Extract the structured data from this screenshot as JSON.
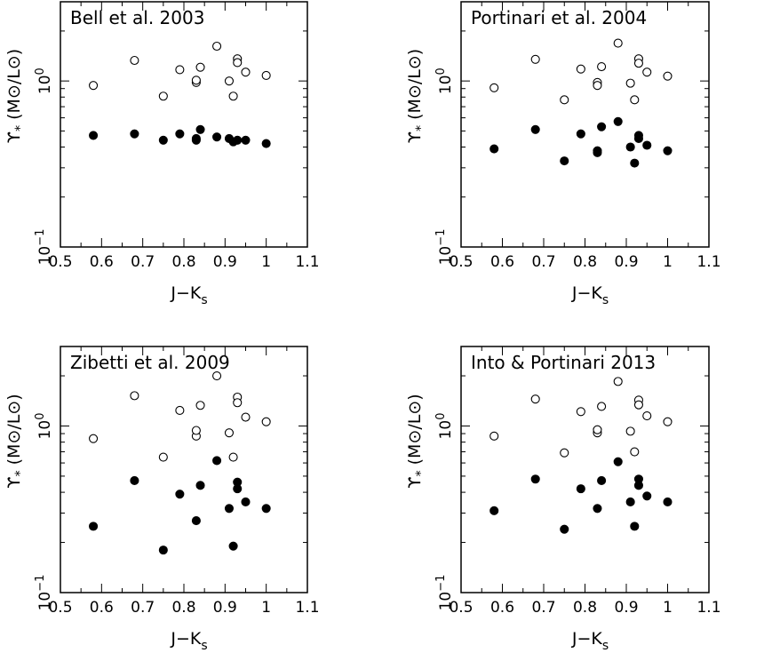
{
  "chart_data": [
    {
      "type": "scatter",
      "title": "Bell et al. 2003",
      "xlabel": "J−K",
      "xlabel_sub": "s",
      "ylabel_sym": "ϒ",
      "ylabel_sub": "*",
      "ylabel_units": "(M⊙/L⊙)",
      "xlim": [
        0.5,
        1.1
      ],
      "ylim": [
        0.1,
        3.0
      ],
      "yscale": "log",
      "x_ticks": [
        "0.5",
        "0.6",
        "0.7",
        "0.8",
        "0.9",
        "1",
        "1.1"
      ],
      "y_ticks": [
        {
          "base": "10",
          "exp": "0"
        },
        {
          "base": "10",
          "exp": "−1"
        }
      ],
      "grid": false,
      "series": [
        {
          "name": "open",
          "marker": "open-circle",
          "x": [
            0.58,
            0.68,
            0.75,
            0.79,
            0.83,
            0.83,
            0.84,
            0.88,
            0.91,
            0.92,
            0.93,
            0.93,
            0.95,
            1.0
          ],
          "y": [
            0.94,
            1.33,
            0.81,
            1.17,
            0.98,
            1.01,
            1.21,
            1.62,
            1.0,
            0.81,
            1.36,
            1.29,
            1.13,
            1.08
          ]
        },
        {
          "name": "filled",
          "marker": "filled-circle",
          "x": [
            0.58,
            0.68,
            0.75,
            0.79,
            0.83,
            0.83,
            0.84,
            0.88,
            0.91,
            0.92,
            0.93,
            0.95,
            1.0
          ],
          "y": [
            0.47,
            0.48,
            0.44,
            0.48,
            0.45,
            0.44,
            0.51,
            0.46,
            0.45,
            0.43,
            0.44,
            0.44,
            0.42
          ]
        }
      ]
    },
    {
      "type": "scatter",
      "title": "Portinari et al. 2004",
      "xlabel": "J−K",
      "xlabel_sub": "s",
      "ylabel_sym": "ϒ",
      "ylabel_sub": "*",
      "ylabel_units": "(M⊙/L⊙)",
      "xlim": [
        0.5,
        1.1
      ],
      "ylim": [
        0.1,
        3.0
      ],
      "yscale": "log",
      "x_ticks": [
        "0.5",
        "0.6",
        "0.7",
        "0.8",
        "0.9",
        "1",
        "1.1"
      ],
      "y_ticks": [
        {
          "base": "10",
          "exp": "0"
        },
        {
          "base": "10",
          "exp": "−1"
        }
      ],
      "grid": false,
      "series": [
        {
          "name": "open",
          "marker": "open-circle",
          "x": [
            0.58,
            0.68,
            0.75,
            0.79,
            0.83,
            0.83,
            0.84,
            0.88,
            0.91,
            0.92,
            0.93,
            0.93,
            0.95,
            1.0
          ],
          "y": [
            0.91,
            1.35,
            0.77,
            1.18,
            0.98,
            0.94,
            1.22,
            1.69,
            0.97,
            0.77,
            1.36,
            1.28,
            1.13,
            1.07
          ]
        },
        {
          "name": "filled",
          "marker": "filled-circle",
          "x": [
            0.58,
            0.68,
            0.75,
            0.79,
            0.83,
            0.83,
            0.84,
            0.88,
            0.91,
            0.92,
            0.93,
            0.93,
            0.95,
            1.0
          ],
          "y": [
            0.39,
            0.51,
            0.33,
            0.48,
            0.38,
            0.37,
            0.53,
            0.57,
            0.4,
            0.32,
            0.47,
            0.45,
            0.41,
            0.38
          ]
        }
      ]
    },
    {
      "type": "scatter",
      "title": "Zibetti et al. 2009",
      "xlabel": "J−K",
      "xlabel_sub": "s",
      "ylabel_sym": "ϒ",
      "ylabel_sub": "*",
      "ylabel_units": "(M⊙/L⊙)",
      "xlim": [
        0.5,
        1.1
      ],
      "ylim": [
        0.1,
        3.0
      ],
      "yscale": "log",
      "x_ticks": [
        "0.5",
        "0.6",
        "0.7",
        "0.8",
        "0.9",
        "1",
        "1.1"
      ],
      "y_ticks": [
        {
          "base": "10",
          "exp": "0"
        },
        {
          "base": "10",
          "exp": "−1"
        }
      ],
      "grid": false,
      "series": [
        {
          "name": "open",
          "marker": "open-circle",
          "x": [
            0.58,
            0.68,
            0.75,
            0.79,
            0.83,
            0.83,
            0.84,
            0.88,
            0.91,
            0.92,
            0.93,
            0.93,
            0.95,
            1.0
          ],
          "y": [
            0.84,
            1.52,
            0.65,
            1.24,
            0.87,
            0.94,
            1.33,
            2.0,
            0.91,
            0.65,
            1.49,
            1.38,
            1.13,
            1.06
          ]
        },
        {
          "name": "filled",
          "marker": "filled-circle",
          "x": [
            0.58,
            0.68,
            0.75,
            0.79,
            0.83,
            0.84,
            0.88,
            0.91,
            0.92,
            0.93,
            0.93,
            0.95,
            1.0
          ],
          "y": [
            0.25,
            0.47,
            0.18,
            0.39,
            0.27,
            0.44,
            0.62,
            0.32,
            0.19,
            0.46,
            0.42,
            0.35,
            0.32
          ]
        }
      ]
    },
    {
      "type": "scatter",
      "title": "Into & Portinari 2013",
      "xlabel": "J−K",
      "xlabel_sub": "s",
      "ylabel_sym": "ϒ",
      "ylabel_sub": "*",
      "ylabel_units": "(M⊙/L⊙)",
      "xlim": [
        0.5,
        1.1
      ],
      "ylim": [
        0.1,
        3.0
      ],
      "yscale": "log",
      "x_ticks": [
        "0.5",
        "0.6",
        "0.7",
        "0.8",
        "0.9",
        "1",
        "1.1"
      ],
      "y_ticks": [
        {
          "base": "10",
          "exp": "0"
        },
        {
          "base": "10",
          "exp": "−1"
        }
      ],
      "grid": false,
      "series": [
        {
          "name": "open",
          "marker": "open-circle",
          "x": [
            0.58,
            0.68,
            0.75,
            0.79,
            0.83,
            0.83,
            0.84,
            0.88,
            0.91,
            0.92,
            0.93,
            0.93,
            0.95,
            1.0
          ],
          "y": [
            0.87,
            1.45,
            0.69,
            1.22,
            0.91,
            0.95,
            1.31,
            1.85,
            0.93,
            0.7,
            1.43,
            1.34,
            1.15,
            1.06
          ]
        },
        {
          "name": "filled",
          "marker": "filled-circle",
          "x": [
            0.58,
            0.68,
            0.75,
            0.79,
            0.83,
            0.84,
            0.88,
            0.91,
            0.92,
            0.93,
            0.93,
            0.95,
            1.0
          ],
          "y": [
            0.31,
            0.48,
            0.24,
            0.42,
            0.32,
            0.47,
            0.61,
            0.35,
            0.25,
            0.48,
            0.44,
            0.38,
            0.35
          ]
        }
      ]
    }
  ]
}
